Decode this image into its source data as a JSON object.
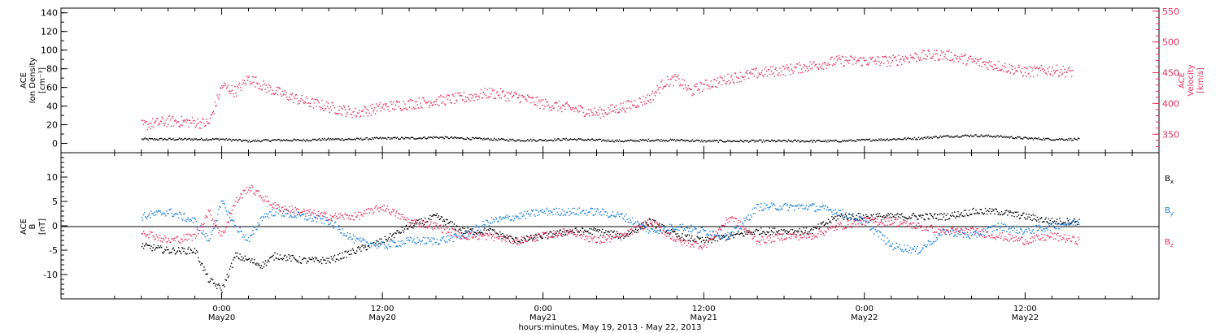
{
  "chart_data": [
    {
      "type": "scatter",
      "panel": "top",
      "left_axis": {
        "label": [
          "ACE",
          "Ion Density",
          "[cm⁻³]"
        ],
        "range": [
          -10,
          145
        ],
        "ticks": [
          0,
          20,
          40,
          60,
          80,
          100,
          120,
          140
        ]
      },
      "right_axis": {
        "label": [
          "ACE",
          "Velocity",
          "[km/s]"
        ],
        "range": [
          320,
          555
        ],
        "ticks": [
          350,
          400,
          450,
          500,
          550
        ]
      },
      "series": [
        {
          "axis": "left",
          "color": "#000000",
          "x_hours": [
            -6,
            -4,
            -2,
            0,
            2,
            4,
            6,
            8,
            10,
            12,
            14,
            16,
            18,
            20,
            22,
            24,
            26,
            28,
            30,
            32,
            34,
            36,
            38,
            40,
            42,
            44,
            46,
            48,
            50,
            52,
            54,
            56,
            58,
            60,
            62,
            64
          ],
          "values": [
            5,
            5,
            5,
            5,
            3,
            4,
            4,
            5,
            5,
            6,
            6,
            7,
            6,
            5,
            4,
            4,
            5,
            4,
            3,
            4,
            4,
            3,
            3,
            3,
            3,
            3,
            3,
            4,
            5,
            6,
            8,
            9,
            8,
            6,
            5,
            5
          ]
        },
        {
          "axis": "right",
          "color": "#e8305a",
          "x_hours": [
            -6,
            -4,
            -2,
            -1,
            0,
            1,
            2,
            3,
            4,
            6,
            8,
            10,
            12,
            14,
            16,
            18,
            20,
            22,
            24,
            26,
            28,
            30,
            32,
            33,
            34,
            35,
            36,
            38,
            40,
            42,
            44,
            46,
            48,
            50,
            52,
            54,
            56,
            58,
            60,
            62,
            63.5
          ],
          "values": [
            365,
            372,
            370,
            368,
            430,
            420,
            442,
            430,
            420,
            405,
            395,
            385,
            395,
            400,
            405,
            410,
            418,
            412,
            400,
            393,
            385,
            395,
            410,
            435,
            440,
            420,
            430,
            442,
            450,
            455,
            462,
            470,
            470,
            470,
            478,
            480,
            470,
            462,
            452,
            455,
            452
          ]
        }
      ]
    },
    {
      "type": "scatter",
      "panel": "bottom",
      "left_axis": {
        "label": [
          "ACE",
          "B",
          "[nT]"
        ],
        "range": [
          -15,
          15
        ],
        "ticks": [
          -10,
          -5,
          0,
          5,
          10
        ]
      },
      "legend": [
        {
          "label": "B",
          "sub": "x",
          "color": "#000000"
        },
        {
          "label": "B",
          "sub": "y",
          "color": "#1a7fe0"
        },
        {
          "label": "B",
          "sub": "z",
          "color": "#e8305a"
        }
      ],
      "series": [
        {
          "name": "Bx",
          "color": "#000000",
          "x_hours": [
            -6,
            -4,
            -2,
            -1,
            0,
            1,
            2,
            3,
            4,
            6,
            8,
            10,
            12,
            14,
            16,
            18,
            20,
            22,
            24,
            26,
            28,
            30,
            32,
            34,
            36,
            38,
            40,
            42,
            44,
            46,
            48,
            50,
            52,
            54,
            56,
            58,
            60,
            62,
            64
          ],
          "values": [
            -4,
            -5,
            -5,
            -11,
            -13,
            -6,
            -7,
            -8,
            -6,
            -7,
            -7,
            -5,
            -3,
            0,
            2,
            -1,
            -1,
            -3,
            -2,
            -1,
            -1,
            -2,
            1,
            -2,
            -3,
            -2,
            -1,
            -1,
            -1,
            2,
            2,
            2,
            2,
            2,
            3,
            3,
            2,
            1,
            1
          ]
        },
        {
          "name": "By",
          "color": "#1a7fe0",
          "x_hours": [
            -6,
            -4,
            -2,
            -1,
            0,
            1,
            2,
            3,
            4,
            6,
            8,
            10,
            12,
            14,
            16,
            18,
            20,
            22,
            24,
            26,
            28,
            30,
            32,
            34,
            36,
            38,
            40,
            42,
            44,
            46,
            48,
            50,
            52,
            54,
            56,
            58,
            60,
            62,
            64
          ],
          "values": [
            2,
            3,
            1,
            -3,
            5,
            0,
            -3,
            2,
            3,
            2,
            1,
            -3,
            -4,
            -3,
            -3,
            -2,
            1,
            2,
            3,
            3,
            3,
            2,
            -1,
            0,
            -1,
            -2,
            4,
            4,
            4,
            3,
            1,
            -4,
            -5,
            -1,
            -2,
            0,
            -1,
            0,
            1
          ]
        },
        {
          "name": "Bz",
          "color": "#e8305a",
          "x_hours": [
            -6,
            -4,
            -2,
            -1,
            0,
            1,
            2,
            3,
            4,
            6,
            8,
            10,
            12,
            14,
            16,
            18,
            20,
            22,
            24,
            26,
            28,
            30,
            32,
            34,
            36,
            38,
            40,
            42,
            44,
            46,
            48,
            50,
            52,
            54,
            56,
            58,
            60,
            62,
            64
          ],
          "values": [
            -1,
            -3,
            -2,
            3,
            -2,
            5,
            8,
            6,
            4,
            3,
            2,
            2,
            4,
            1,
            0,
            -2,
            -2,
            -3,
            -2,
            -1,
            -3,
            -2,
            1,
            -3,
            -4,
            2,
            -3,
            -2,
            -2,
            0,
            1,
            1,
            0,
            -1,
            -1,
            -2,
            -3,
            -2,
            -3
          ]
        }
      ]
    }
  ],
  "x_axis": {
    "range_hours": [
      -12,
      70
    ],
    "ticks": [
      {
        "hours": 0,
        "time": "0:00",
        "date": "May20"
      },
      {
        "hours": 12,
        "time": "12:00",
        "date": "May20"
      },
      {
        "hours": 24,
        "time": "0:00",
        "date": "May21"
      },
      {
        "hours": 36,
        "time": "12:00",
        "date": "May21"
      },
      {
        "hours": 48,
        "time": "0:00",
        "date": "May22"
      },
      {
        "hours": 60,
        "time": "12:00",
        "date": "May22"
      }
    ],
    "title": "hours:minutes, May 19, 2013 - May 22, 2013"
  }
}
